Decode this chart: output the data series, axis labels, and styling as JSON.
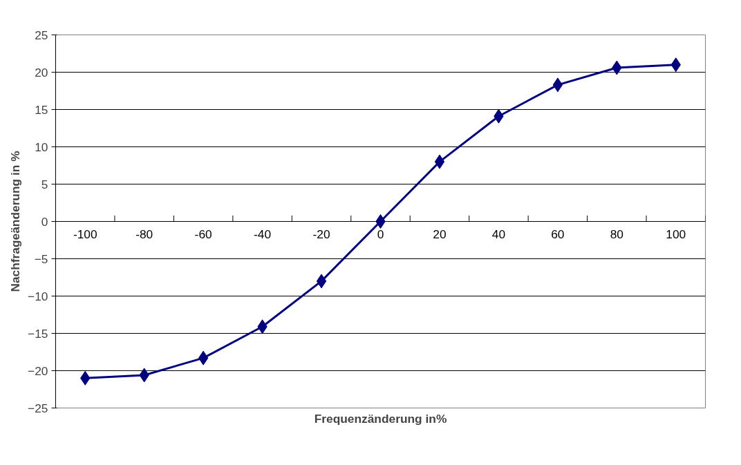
{
  "chart_data": {
    "type": "line",
    "xlabel": "Frequenzänderung in%",
    "ylabel": "Nachfrageänderung in %",
    "categories": [
      "-100",
      "-80",
      "-60",
      "-40",
      "-20",
      "0",
      "20",
      "40",
      "60",
      "80",
      "100"
    ],
    "series": [
      {
        "color": "#000080",
        "values": [
          -21,
          -20.6,
          -18.3,
          -14.1,
          -8,
          0,
          8,
          14.1,
          18.3,
          20.6,
          21
        ]
      }
    ],
    "ylim": [
      -25,
      25
    ],
    "yticks": [
      -25,
      -20,
      -15,
      -10,
      -5,
      0,
      5,
      10,
      15,
      20,
      25
    ],
    "grid": "y",
    "marker": "diamond",
    "line_style": "solid"
  }
}
